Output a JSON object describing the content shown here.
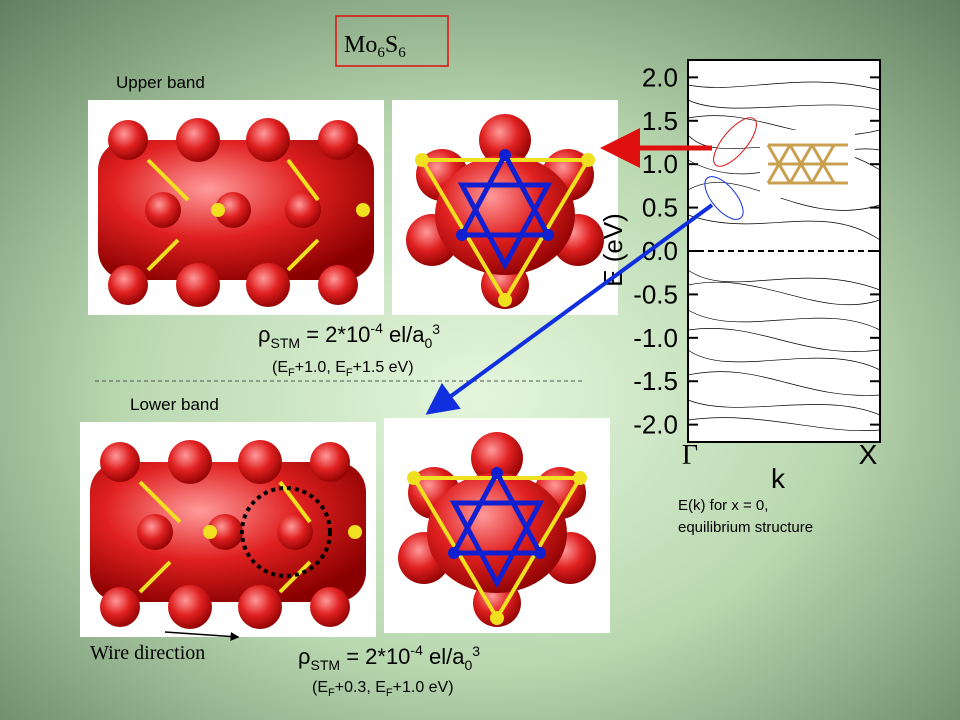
{
  "title": {
    "parts": [
      "Mo",
      "6",
      "S",
      "6"
    ]
  },
  "upper": {
    "label": "Upper band",
    "density": [
      "ρ",
      "STM",
      " = 2*10",
      "-4",
      " el/a",
      "0",
      "3"
    ],
    "range": [
      "(E",
      "F",
      "+1.0, E",
      "F",
      "+1.5 eV)"
    ]
  },
  "lower": {
    "label": "Lower band",
    "density": [
      "ρ",
      "STM",
      " = 2*10",
      "-4",
      " el/a",
      "0",
      "3"
    ],
    "range": [
      "(E",
      "F",
      "+0.3, E",
      "F",
      "+1.0 eV)"
    ]
  },
  "wire_direction": "Wire direction",
  "band_plot": {
    "ylabel": "E (eV)",
    "xlabel": "k",
    "xtick_labels": [
      "Γ",
      "X"
    ],
    "ylim": [
      -2.2,
      2.2
    ],
    "yticks": [
      {
        "value": 2,
        "label": "2.0"
      },
      1.5,
      {
        "value": 1,
        "label": "1.0"
      },
      0.5,
      {
        "value": 0,
        "label": "0.0"
      },
      -0.5,
      {
        "value": -1,
        "label": "-1.0"
      },
      -1.5,
      {
        "value": -2,
        "label": "-2.0"
      }
    ],
    "caption": [
      "E(k) for x = 0,",
      "equilibrium structure"
    ]
  }
}
